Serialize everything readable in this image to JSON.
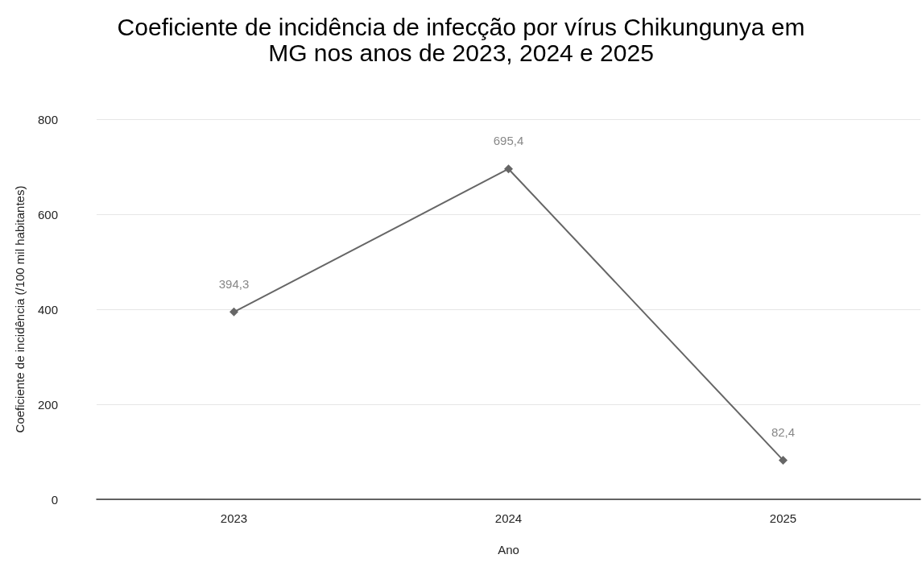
{
  "chart_data": {
    "type": "line",
    "title": "Coeficiente de incidência de infecção por vírus Chikungunya em\nMG nos anos de 2023, 2024 e 2025",
    "xlabel": "Ano",
    "ylabel": "Coeficiente de incidência (/100 mil habitantes)",
    "categories": [
      "2023",
      "2024",
      "2025"
    ],
    "series": [
      {
        "color": "#666666",
        "values": [
          394.3,
          695.4,
          82.4
        ],
        "value_labels": [
          "394,3",
          "695,4",
          "82,4"
        ]
      }
    ],
    "ylim": [
      0,
      800
    ],
    "yticks": [
      0,
      200,
      400,
      600,
      800
    ],
    "grid": "y",
    "marker": "diamond",
    "line_style": "solid"
  }
}
